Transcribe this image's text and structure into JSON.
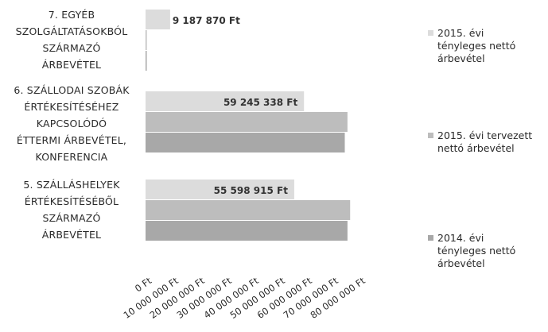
{
  "chart_data": {
    "type": "bar",
    "orientation": "horizontal",
    "categories": [
      "7. EGYÉB SZOLGÁLTATÁSOKBÓL SZÁRMAZÓ ÁRBEVÉTEL",
      "6. SZÁLLODAI SZOBÁK ÉRTÉKESÍTÉSÉHEZ KAPCSOLÓDÓ ÉTTERMI ÁRBEVÉTEL, KONFERENCIA",
      "5. SZÁLLÁSHELYEK ÉRTÉKESÍTÉSÉBŐL SZÁRMAZÓ ÁRBEVÉTEL"
    ],
    "category_label_lines": [
      [
        "7. EGYÉB",
        "SZOLGÁLTATÁSOKBÓL",
        "SZÁRMAZÓ",
        "ÁRBEVÉTEL"
      ],
      [
        "6. SZÁLLODAI SZOBÁK",
        "ÉRTÉKESÍTÉSÉHEZ",
        "KAPCSOLÓDÓ",
        "ÉTTERMI ÁRBEVÉTEL,",
        "KONFERENCIA"
      ],
      [
        "5. SZÁLLÁSHELYEK",
        "ÉRTÉKESÍTÉSÉBŐL",
        "SZÁRMAZÓ",
        "ÁRBEVÉTEL"
      ]
    ],
    "series": [
      {
        "name": "2015. évi tényleges nettó árbevétel",
        "values": [
          9187870,
          59245338,
          55598915
        ],
        "color": "#dcdcdc"
      },
      {
        "name": "2015. évi tervezett nettó árbevétel",
        "values": [
          150000,
          75500000,
          76500000
        ],
        "color": "#bdbdbd"
      },
      {
        "name": "2014. évi tényleges nettó árbevétel",
        "values": [
          150000,
          74500000,
          75500000
        ],
        "color": "#a8a8a8"
      }
    ],
    "data_labels": [
      {
        "category": 0,
        "series": 0,
        "text": "9 187 870 Ft"
      },
      {
        "category": 1,
        "series": 0,
        "text": "59 245 338 Ft"
      },
      {
        "category": 2,
        "series": 0,
        "text": "55 598 915 Ft"
      }
    ],
    "x_ticks": [
      0,
      10000000,
      20000000,
      30000000,
      40000000,
      50000000,
      60000000,
      70000000,
      80000000
    ],
    "x_tick_labels": [
      "0 Ft",
      "10 000 000 Ft",
      "20 000 000 Ft",
      "30 000 000 Ft",
      "40 000 000 Ft",
      "50 000 000 Ft",
      "60 000 000 Ft",
      "70 000 000 Ft",
      "80 000 000 Ft"
    ],
    "xlim": [
      0,
      80000000
    ],
    "grid": false,
    "legend_position": "right",
    "legend_lines": [
      [
        "2015. évi",
        "tényleges nettó",
        "árbevétel"
      ],
      [
        "2015. évi tervezett",
        "nettó árbevétel"
      ],
      [
        "2014. évi",
        "tényleges nettó",
        "árbevétel"
      ]
    ]
  }
}
